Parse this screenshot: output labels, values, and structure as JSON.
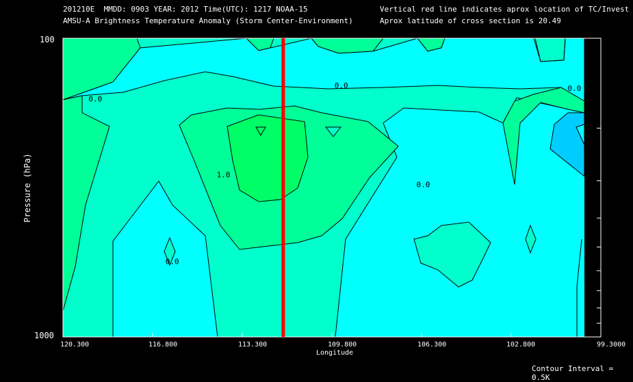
{
  "header": {
    "line1_left": "201210E  MMDD: 0903 YEAR: 2012 Time(UTC): 1217 NOAA-15",
    "line2_left": "AMSU-A Brightness Temperature Anomaly (Storm Center-Environment)",
    "line1_right": "Vertical red line indicates aprox location of TC/Invest",
    "line2_right": "Aprox latitude of cross section is 20.49"
  },
  "footer": {
    "contour_interval": "Contour Interval = 0.5K"
  },
  "colors": {
    "background": "#000000",
    "cyan": "#00ffff",
    "teal": "#00ffcc",
    "mint": "#00ff99",
    "green1": "#00ff66",
    "green2": "#00ff33",
    "blue": "#00ccff",
    "storm_line": "#ff0000",
    "contour": "#000000"
  },
  "chart_data": {
    "type": "contour",
    "title": "AMSU-A Brightness Temperature Anomaly (Storm Center-Environment)",
    "xlabel": "Longitude",
    "ylabel": "Pressure (hPa)",
    "xlim": [
      120.3,
      99.3
    ],
    "ylim": [
      1000,
      100
    ],
    "y_scale": "log",
    "x_ticks": [
      "120.300",
      "116.800",
      "113.300",
      "109.800",
      "106.300",
      "102.800",
      "99.3000"
    ],
    "x_tick_values": [
      120.3,
      116.8,
      113.3,
      109.8,
      106.3,
      102.8,
      99.3
    ],
    "y_ticks": [
      "100",
      "1000"
    ],
    "y_minor_ticks": [
      200,
      300,
      400,
      500,
      600,
      700,
      800,
      900
    ],
    "storm_longitude": 111.7,
    "latitude": 20.49,
    "contour_interval_K": 0.5,
    "contour_labels": [
      {
        "text": "0.0",
        "lon": 119.3,
        "p": 163
      },
      {
        "text": "0.0",
        "lon": 109.7,
        "p": 147
      },
      {
        "text": "0.0",
        "lon": 100.6,
        "p": 150
      },
      {
        "text": "0.0",
        "lon": 106.5,
        "p": 315
      },
      {
        "text": "0.0",
        "lon": 116.3,
        "p": 570
      },
      {
        "text": "1.0",
        "lon": 114.3,
        "p": 292
      }
    ],
    "color_levels": [
      {
        "name": "below -0.5K",
        "color": "#00ccff"
      },
      {
        "name": "-0.5 to 0K",
        "color": "#00ffff"
      },
      {
        "name": "0 to 0.5K",
        "color": "#00ffcc"
      },
      {
        "name": "0.5 to 1.0K",
        "color": "#00ff99"
      },
      {
        "name": "1.0 to 1.5K",
        "color": "#00ff66"
      },
      {
        "name": "above 1.5K",
        "color": "#00ff33"
      }
    ]
  }
}
